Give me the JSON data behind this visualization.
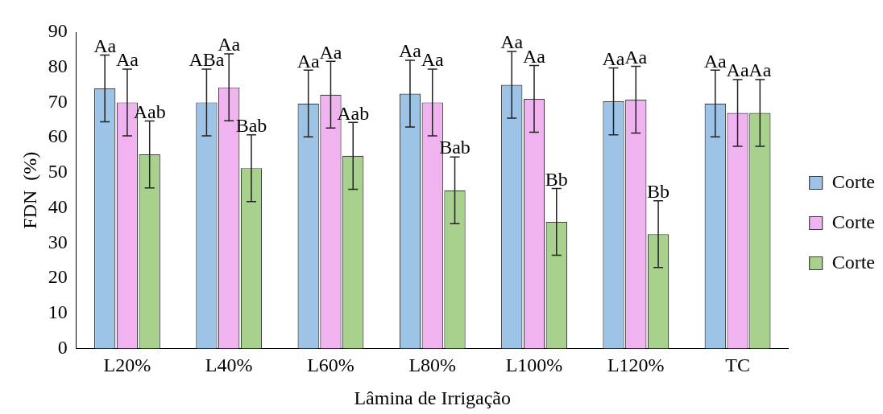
{
  "chart_data": {
    "type": "bar",
    "xlabel": "Lâmina de Irrigação",
    "ylabel": "FDN  (%)",
    "categories": [
      "L20%",
      "L40%",
      "L60%",
      "L80%",
      "L100%",
      "L120%",
      "TC"
    ],
    "ylim": [
      0,
      90
    ],
    "yticks": [
      0,
      10,
      20,
      30,
      40,
      50,
      60,
      70,
      80,
      90
    ],
    "grid": false,
    "legend": "right",
    "series": [
      {
        "name": "Corte",
        "color": "#9dc3e6",
        "values": [
          74,
          70,
          69.7,
          72.5,
          75,
          70.3,
          69.7
        ],
        "errors": [
          9.5,
          9.5,
          9.5,
          9.5,
          9.5,
          9.5,
          9.5
        ],
        "value_labels": [
          "Aa",
          "ABa",
          "Aa",
          "Aa",
          "Aa",
          "Aa",
          "Aa"
        ]
      },
      {
        "name": "Corte",
        "color": "#f0b3f0",
        "values": [
          70,
          74.3,
          72.2,
          70,
          71,
          70.8,
          67
        ],
        "errors": [
          9.5,
          9.5,
          9.5,
          9.5,
          9.5,
          9.5,
          9.5
        ],
        "value_labels": [
          "Aa",
          "Aa",
          "Aa",
          "Aa",
          "Aa",
          "Aa",
          "Aa"
        ]
      },
      {
        "name": "Corte",
        "color": "#a9d18e",
        "values": [
          55.2,
          51.3,
          54.8,
          45,
          36,
          32.5,
          67
        ],
        "errors": [
          9.5,
          9.5,
          9.5,
          9.5,
          9.5,
          9.5,
          9.5
        ],
        "value_labels": [
          "Aab",
          "Bab",
          "Aab",
          "Bab",
          "Bb",
          "Bb",
          "Aa"
        ]
      }
    ]
  }
}
